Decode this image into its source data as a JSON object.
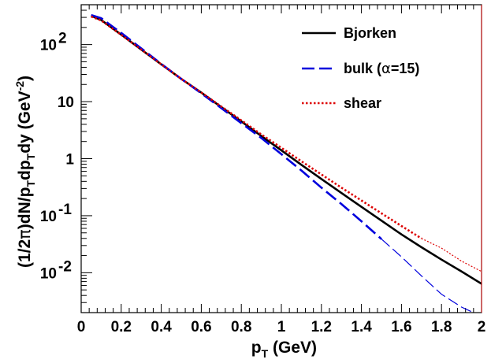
{
  "chart_data": {
    "type": "line",
    "xlabel": {
      "main": "p",
      "sub": "T",
      "rest": " (GeV)"
    },
    "ylabel": "(1/2π)dN/p_T dp_T dy (GeV^-2)",
    "ylabel_parts": {
      "a": "(1/2",
      "pi": "π",
      "b": ")dN/p",
      "sub1": "T",
      "c": "dp",
      "sub2": "T",
      "d": "dy (GeV",
      "sup": "-2",
      "e": ")"
    },
    "xlim": [
      0,
      2
    ],
    "ylim": [
      0.002,
      500
    ],
    "yscale": "log",
    "x_ticks": [
      "0",
      "0.2",
      "0.4",
      "0.6",
      "0.8",
      "1",
      "1.2",
      "1.4",
      "1.6",
      "1.8",
      "2"
    ],
    "x_tick_values": [
      0,
      0.2,
      0.4,
      0.6,
      0.8,
      1.0,
      1.2,
      1.4,
      1.6,
      1.8,
      2.0
    ],
    "y_ticks": [
      {
        "value": 100,
        "base": "10",
        "exp": "2"
      },
      {
        "value": 10,
        "base": "10",
        "exp": ""
      },
      {
        "value": 1,
        "base": "1",
        "exp": ""
      },
      {
        "value": 0.1,
        "base": "10",
        "exp": "-1"
      },
      {
        "value": 0.01,
        "base": "10",
        "exp": "-2"
      }
    ],
    "series": [
      {
        "name": "Bjorken",
        "color": "#000000",
        "dash": "solid",
        "x": [
          0.05,
          0.1,
          0.2,
          0.3,
          0.4,
          0.5,
          0.6,
          0.7,
          0.8,
          0.9,
          1.0,
          1.1,
          1.2,
          1.3,
          1.4,
          1.5,
          1.6,
          1.7,
          1.8,
          1.9,
          2.0
        ],
        "y": [
          320,
          270,
          150,
          82,
          45,
          25,
          14.4,
          8.0,
          4.5,
          2.5,
          1.4,
          0.78,
          0.44,
          0.25,
          0.143,
          0.082,
          0.047,
          0.028,
          0.017,
          0.0105,
          0.0064
        ]
      },
      {
        "name": "bulk (α=15)",
        "label_pre": "bulk (",
        "label_greek": "α",
        "label_post": "=15)",
        "color": "#0000dd",
        "dash": "long-dash",
        "x": [
          0.05,
          0.1,
          0.2,
          0.3,
          0.4,
          0.5,
          0.6,
          0.7,
          0.8,
          0.9,
          1.0,
          1.1,
          1.2,
          1.3,
          1.4,
          1.5,
          1.6,
          1.7,
          1.8,
          1.9,
          1.96
        ],
        "y": [
          330,
          290,
          160,
          86,
          46,
          25,
          14.0,
          7.7,
          4.2,
          2.3,
          1.2,
          0.62,
          0.31,
          0.16,
          0.08,
          0.039,
          0.019,
          0.0088,
          0.0042,
          0.0025,
          0.002
        ]
      },
      {
        "name": "shear",
        "color": "#dd0000",
        "dash": "dotted",
        "x": [
          0.05,
          0.1,
          0.2,
          0.3,
          0.4,
          0.5,
          0.6,
          0.7,
          0.8,
          0.9,
          1.0,
          1.1,
          1.2,
          1.3,
          1.4,
          1.5,
          1.6,
          1.7,
          1.8,
          1.9,
          2.0
        ],
        "y": [
          310,
          265,
          148,
          82,
          45,
          25,
          14.5,
          8.2,
          4.7,
          2.65,
          1.55,
          0.9,
          0.53,
          0.31,
          0.185,
          0.11,
          0.066,
          0.04,
          0.027,
          0.016,
          0.0105
        ]
      }
    ],
    "legend_position": "top-right"
  }
}
